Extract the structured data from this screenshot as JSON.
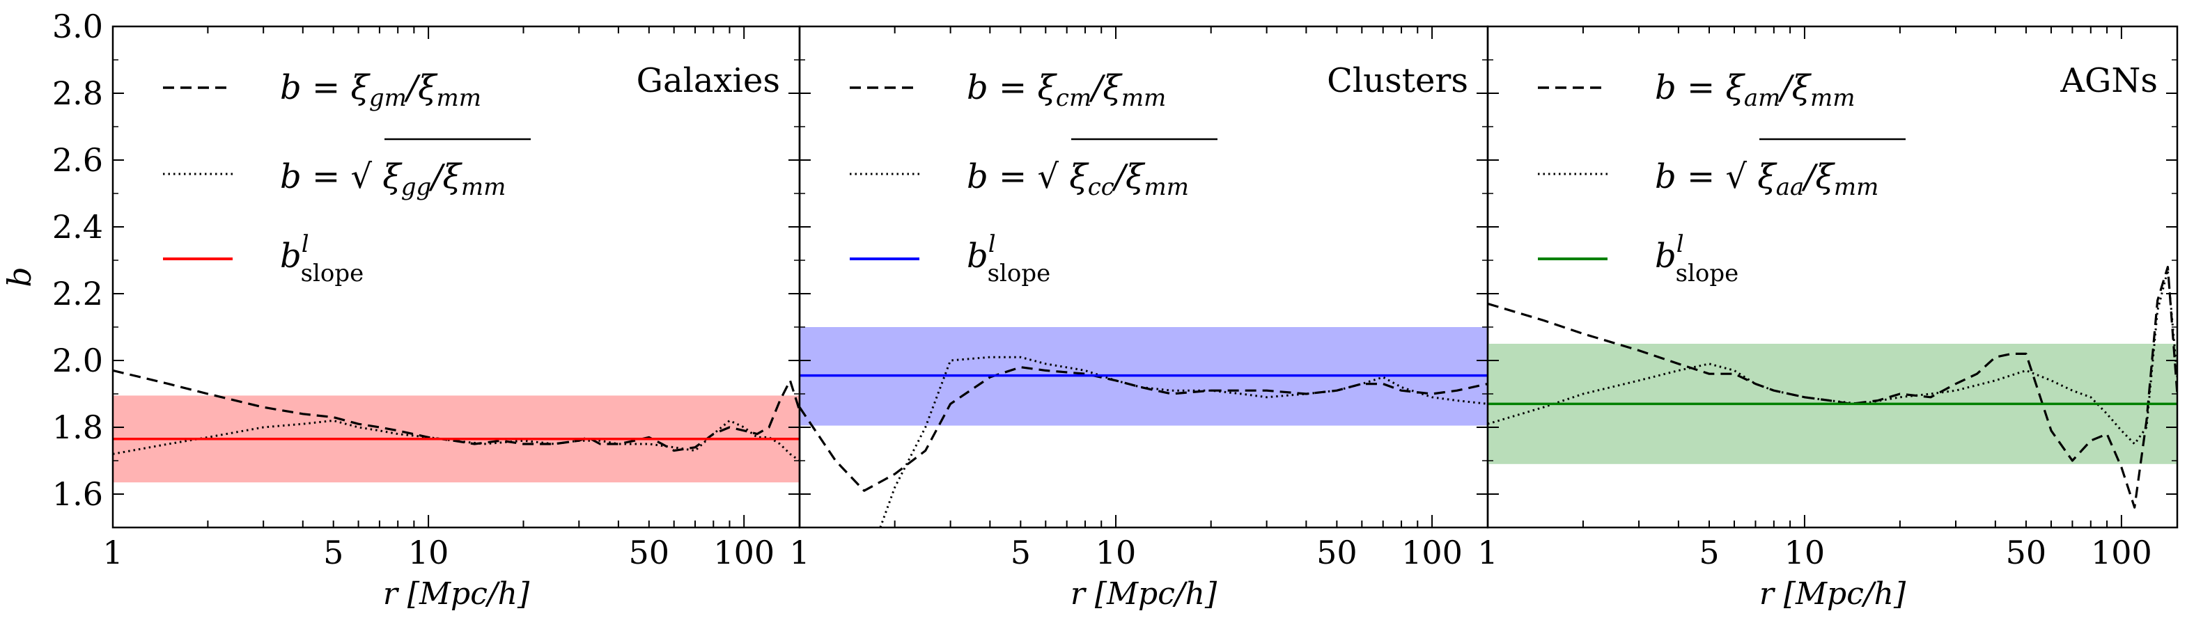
{
  "figure": {
    "ylabel": "b",
    "xlabel": "r [Mpc/h]",
    "ylim": [
      1.5,
      3.0
    ],
    "xlim": [
      1,
      150
    ],
    "yticks": [
      "3.0",
      "2.8",
      "2.6",
      "2.4",
      "2.2",
      "2.0",
      "1.8",
      "1.6"
    ],
    "xticks": [
      "1",
      "5",
      "10",
      "50",
      "100"
    ]
  },
  "legend_labels": {
    "dashed_prefix": "b = ξ",
    "dotted_prefix": "b = √ ξ",
    "over": "/ξ",
    "mm": "mm",
    "slope_base": "b",
    "slope_sup": "l",
    "slope_sub": "slope"
  },
  "chart_data": [
    {
      "type": "line",
      "title": "Galaxies",
      "color": "#ff0000",
      "band_color": "#ffb3b3",
      "xlabel": "r [Mpc/h]",
      "ylabel": "b",
      "xscale": "log",
      "xlim": [
        1,
        150
      ],
      "ylim": [
        1.5,
        3.0
      ],
      "legend": {
        "dashed_sub": "gm",
        "dotted_sub": "gg"
      },
      "series": [
        {
          "name": "b = ξgm/ξmm",
          "style": "dashed",
          "x": [
            1,
            1.5,
            2,
            3,
            4,
            5,
            6,
            7,
            8,
            10,
            12,
            14,
            17,
            20,
            25,
            30,
            32,
            35,
            40,
            45,
            50,
            55,
            60,
            70,
            80,
            90,
            100,
            110,
            120,
            130,
            140,
            150
          ],
          "y": [
            1.97,
            1.93,
            1.9,
            1.86,
            1.84,
            1.83,
            1.81,
            1.8,
            1.79,
            1.77,
            1.76,
            1.75,
            1.76,
            1.75,
            1.75,
            1.76,
            1.77,
            1.75,
            1.75,
            1.76,
            1.77,
            1.75,
            1.73,
            1.74,
            1.78,
            1.8,
            1.79,
            1.78,
            1.8,
            1.88,
            1.94,
            1.85
          ]
        },
        {
          "name": "b = sqrt(ξgg/ξmm)",
          "style": "dotted",
          "x": [
            1,
            1.5,
            2,
            3,
            4,
            5,
            6,
            7,
            8,
            10,
            12,
            15,
            20,
            25,
            30,
            35,
            40,
            50,
            60,
            70,
            80,
            90,
            100,
            110,
            120,
            130,
            140,
            150
          ],
          "y": [
            1.72,
            1.75,
            1.77,
            1.8,
            1.81,
            1.82,
            1.8,
            1.79,
            1.78,
            1.77,
            1.76,
            1.75,
            1.76,
            1.75,
            1.76,
            1.76,
            1.75,
            1.75,
            1.74,
            1.73,
            1.78,
            1.82,
            1.8,
            1.77,
            1.77,
            1.75,
            1.72,
            1.7
          ]
        },
        {
          "name": "b_slope^l",
          "style": "solid",
          "value": 1.765
        }
      ],
      "band": [
        1.635,
        1.895
      ]
    },
    {
      "type": "line",
      "title": "Clusters",
      "color": "#0000ff",
      "band_color": "#b3b3ff",
      "xlabel": "r [Mpc/h]",
      "ylabel": "b",
      "xscale": "log",
      "xlim": [
        1,
        150
      ],
      "ylim": [
        1.5,
        3.0
      ],
      "legend": {
        "dashed_sub": "cm",
        "dotted_sub": "cc"
      },
      "series": [
        {
          "name": "b = ξcm/ξmm",
          "style": "dashed",
          "x": [
            1,
            1.3,
            1.6,
            2,
            2.5,
            3,
            4,
            5,
            6,
            8,
            10,
            12,
            15,
            20,
            25,
            30,
            40,
            50,
            60,
            70,
            80,
            100,
            120,
            150
          ],
          "y": [
            1.86,
            1.7,
            1.61,
            1.66,
            1.73,
            1.87,
            1.95,
            1.98,
            1.97,
            1.96,
            1.94,
            1.92,
            1.9,
            1.91,
            1.91,
            1.91,
            1.9,
            1.91,
            1.93,
            1.93,
            1.91,
            1.9,
            1.91,
            1.93
          ]
        },
        {
          "name": "b = sqrt(ξcc/ξmm)",
          "style": "dotted",
          "x": [
            1.8,
            2,
            2.5,
            3,
            4,
            5,
            6,
            8,
            10,
            12,
            15,
            20,
            25,
            30,
            40,
            50,
            60,
            70,
            80,
            100,
            120,
            150
          ],
          "y": [
            1.5,
            1.62,
            1.8,
            2.0,
            2.01,
            2.01,
            1.99,
            1.97,
            1.94,
            1.92,
            1.91,
            1.91,
            1.9,
            1.89,
            1.9,
            1.91,
            1.93,
            1.95,
            1.92,
            1.89,
            1.88,
            1.87
          ]
        },
        {
          "name": "b_slope^l",
          "style": "solid",
          "value": 1.955
        }
      ],
      "band": [
        1.805,
        2.1
      ]
    },
    {
      "type": "line",
      "title": "AGNs",
      "color": "#008000",
      "band_color": "#b9ddb9",
      "xlabel": "r [Mpc/h]",
      "ylabel": "b",
      "xscale": "log",
      "xlim": [
        1,
        150
      ],
      "ylim": [
        1.5,
        3.0
      ],
      "legend": {
        "dashed_sub": "am",
        "dotted_sub": "aa"
      },
      "series": [
        {
          "name": "b = ξam/ξmm",
          "style": "dashed",
          "x": [
            1,
            1.5,
            2,
            3,
            4,
            5,
            6,
            7,
            8,
            10,
            12,
            14,
            17,
            20,
            25,
            30,
            35,
            40,
            45,
            50,
            55,
            60,
            70,
            80,
            90,
            100,
            110,
            120,
            130,
            140,
            150
          ],
          "y": [
            2.17,
            2.12,
            2.08,
            2.03,
            1.99,
            1.96,
            1.96,
            1.93,
            1.91,
            1.89,
            1.88,
            1.87,
            1.88,
            1.9,
            1.89,
            1.93,
            1.96,
            2.01,
            2.02,
            2.02,
            1.9,
            1.79,
            1.7,
            1.76,
            1.78,
            1.68,
            1.56,
            1.82,
            2.18,
            2.28,
            1.9
          ]
        },
        {
          "name": "b = sqrt(ξaa/ξmm)",
          "style": "dotted",
          "x": [
            1,
            1.5,
            2,
            3,
            4,
            5,
            6,
            7,
            8,
            10,
            12,
            15,
            20,
            25,
            30,
            40,
            50,
            60,
            70,
            80,
            90,
            100,
            110,
            120,
            130,
            140,
            150
          ],
          "y": [
            1.81,
            1.86,
            1.9,
            1.94,
            1.97,
            1.99,
            1.97,
            1.93,
            1.91,
            1.89,
            1.88,
            1.87,
            1.89,
            1.9,
            1.91,
            1.94,
            1.97,
            1.94,
            1.91,
            1.89,
            1.84,
            1.79,
            1.75,
            1.8,
            2.15,
            2.27,
            1.95
          ]
        },
        {
          "name": "b_slope^l",
          "style": "solid",
          "value": 1.87
        }
      ],
      "band": [
        1.69,
        2.05
      ]
    }
  ]
}
